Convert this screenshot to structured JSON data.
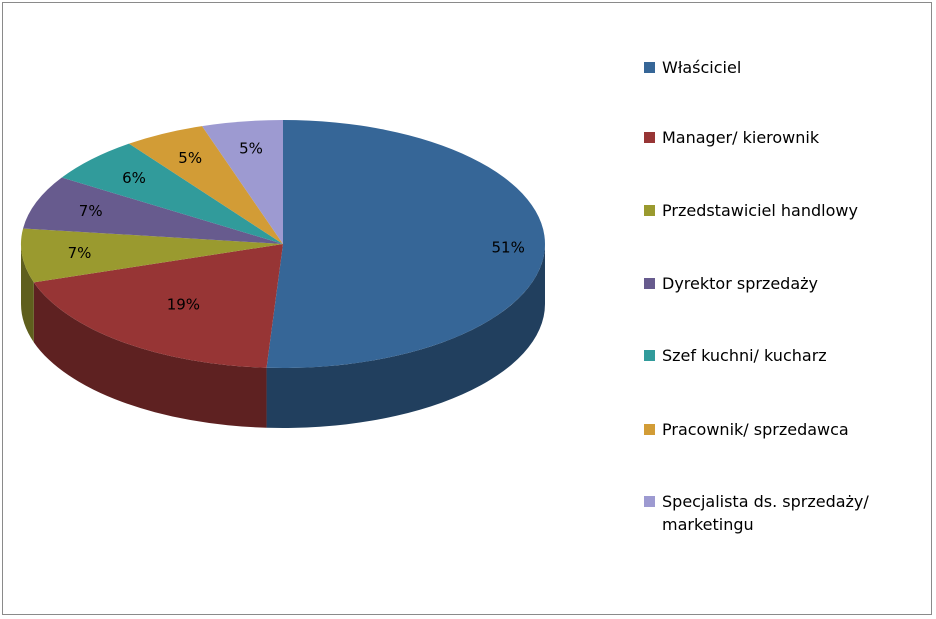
{
  "chart_data": {
    "type": "pie",
    "title": "",
    "style": "3d",
    "legend_position": "right",
    "categories": [
      "Właściciel",
      "Manager/ kierownik",
      "Przedstawiciel handlowy",
      "Dyrektor sprzedaży",
      "Szef kuchni/ kucharz",
      "Pracownik/ sprzedawca",
      "Specjalista ds. sprzedaży/ marketingu"
    ],
    "values": [
      51,
      19,
      7,
      7,
      6,
      5,
      5
    ],
    "labels": [
      "51%",
      "19%",
      "7%",
      "7%",
      "6%",
      "5%",
      "5%"
    ],
    "colors": [
      "#366697",
      "#973535",
      "#9a9a2f",
      "#675b8e",
      "#319b9b",
      "#d29c36",
      "#9d9ad1"
    ]
  }
}
